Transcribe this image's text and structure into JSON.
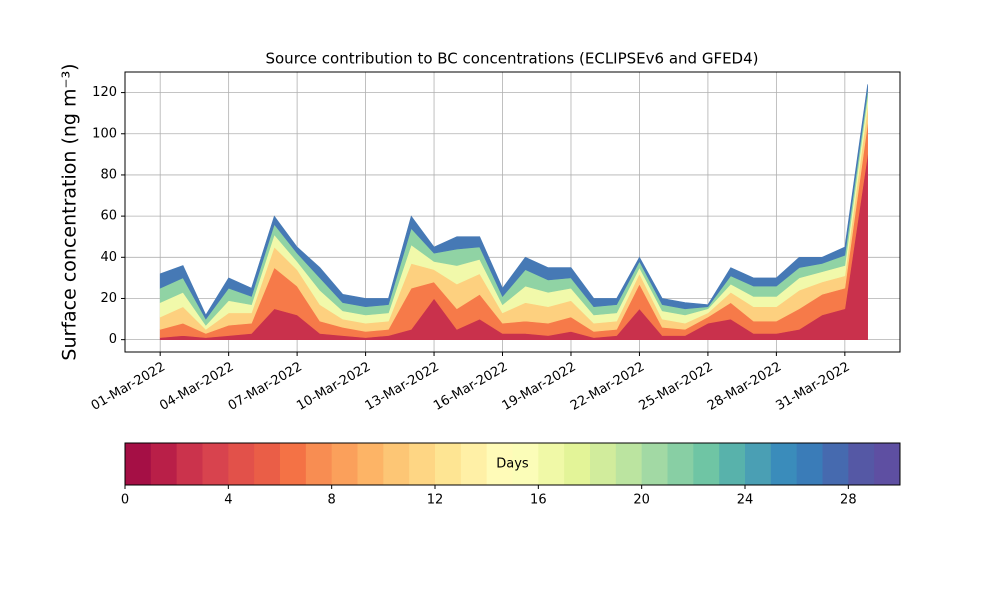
{
  "chart_data": {
    "type": "stacked_area",
    "title": "Source contribution to BC concentrations (ECLIPSEv6 and GFED4)",
    "y_label": "Surface concentration (ng m⁻³)",
    "x": [
      "2022-03-01",
      "2022-03-02",
      "2022-03-03",
      "2022-03-04",
      "2022-03-05",
      "2022-03-06",
      "2022-03-07",
      "2022-03-08",
      "2022-03-09",
      "2022-03-10",
      "2022-03-11",
      "2022-03-12",
      "2022-03-13",
      "2022-03-14",
      "2022-03-15",
      "2022-03-16",
      "2022-03-17",
      "2022-03-18",
      "2022-03-19",
      "2022-03-20",
      "2022-03-21",
      "2022-03-22",
      "2022-03-23",
      "2022-03-24",
      "2022-03-25",
      "2022-03-26",
      "2022-03-27",
      "2022-03-28",
      "2022-03-29",
      "2022-03-30",
      "2022-03-31",
      "2022-04-01"
    ],
    "series": [
      {
        "color": "#c9314c",
        "values": [
          1,
          2,
          1,
          2,
          3,
          15,
          12,
          3,
          2,
          1,
          2,
          5,
          20,
          5,
          10,
          3,
          3,
          2,
          4,
          1,
          2,
          15,
          2,
          2,
          8,
          10,
          3,
          3,
          5,
          12,
          15,
          90
        ]
      },
      {
        "color": "#f67a49",
        "values": [
          4,
          6,
          2,
          5,
          5,
          20,
          14,
          6,
          4,
          3,
          3,
          20,
          8,
          10,
          12,
          5,
          6,
          6,
          7,
          3,
          3,
          12,
          4,
          3,
          3,
          8,
          6,
          6,
          10,
          10,
          10,
          15
        ]
      },
      {
        "color": "#fdd07f",
        "values": [
          6,
          8,
          2,
          6,
          5,
          10,
          8,
          8,
          4,
          4,
          4,
          12,
          6,
          12,
          10,
          5,
          9,
          8,
          8,
          4,
          4,
          5,
          4,
          3,
          2,
          5,
          7,
          7,
          9,
          6,
          6,
          8
        ]
      },
      {
        "color": "#f1f9aa",
        "values": [
          7,
          7,
          2,
          6,
          4,
          6,
          4,
          7,
          4,
          4,
          4,
          9,
          4,
          9,
          7,
          4,
          8,
          7,
          6,
          4,
          4,
          3,
          4,
          4,
          2,
          4,
          5,
          5,
          6,
          5,
          5,
          5
        ]
      },
      {
        "color": "#90d3a4",
        "values": [
          7,
          7,
          3,
          6,
          4,
          5,
          4,
          6,
          4,
          4,
          4,
          8,
          4,
          8,
          6,
          4,
          8,
          6,
          5,
          4,
          4,
          3,
          3,
          3,
          1,
          4,
          5,
          5,
          5,
          4,
          5,
          3
        ]
      },
      {
        "color": "#4679b5",
        "values": [
          7,
          6,
          2,
          5,
          4,
          4,
          3,
          5,
          4,
          4,
          3,
          6,
          3,
          6,
          5,
          4,
          6,
          6,
          5,
          4,
          3,
          2,
          3,
          3,
          1,
          4,
          4,
          4,
          5,
          3,
          4,
          3
        ]
      }
    ],
    "xlim": [
      "2022-02-27T11:00",
      "2022-04-02T10:00"
    ],
    "xticks": [
      {
        "value": "2022-03-01",
        "label": "01-Mar-2022"
      },
      {
        "value": "2022-03-04",
        "label": "04-Mar-2022"
      },
      {
        "value": "2022-03-07",
        "label": "07-Mar-2022"
      },
      {
        "value": "2022-03-10",
        "label": "10-Mar-2022"
      },
      {
        "value": "2022-03-13",
        "label": "13-Mar-2022"
      },
      {
        "value": "2022-03-16",
        "label": "16-Mar-2022"
      },
      {
        "value": "2022-03-19",
        "label": "19-Mar-2022"
      },
      {
        "value": "2022-03-22",
        "label": "22-Mar-2022"
      },
      {
        "value": "2022-03-25",
        "label": "25-Mar-2022"
      },
      {
        "value": "2022-03-28",
        "label": "28-Mar-2022"
      },
      {
        "value": "2022-03-31",
        "label": "31-Mar-2022"
      }
    ],
    "ylim": [
      -6,
      130
    ],
    "yticks": [
      0,
      20,
      40,
      60,
      80,
      100,
      120
    ],
    "grid": true,
    "colorbar": {
      "label": "Days",
      "lim": [
        0,
        30
      ],
      "ticks": [
        0,
        4,
        8,
        12,
        16,
        20,
        24,
        28
      ],
      "colors": [
        "#a50f45",
        "#b91f48",
        "#cb334c",
        "#d8434e",
        "#e2514a",
        "#ea5e47",
        "#f47245",
        "#f88d52",
        "#fba05b",
        "#fdb466",
        "#fdc675",
        "#fed684",
        "#fee593",
        "#fff0a6",
        "#fffbb8",
        "#fbfdb8",
        "#f0f9a7",
        "#e3f498",
        "#d1ec9c",
        "#bbe4a0",
        "#a2d9a4",
        "#88cfa4",
        "#6fc5a4",
        "#58b2ab",
        "#4a9fb4",
        "#3a8cbb",
        "#3a7cb8",
        "#466aaf",
        "#5558a5",
        "#5e4fa2"
      ]
    }
  }
}
